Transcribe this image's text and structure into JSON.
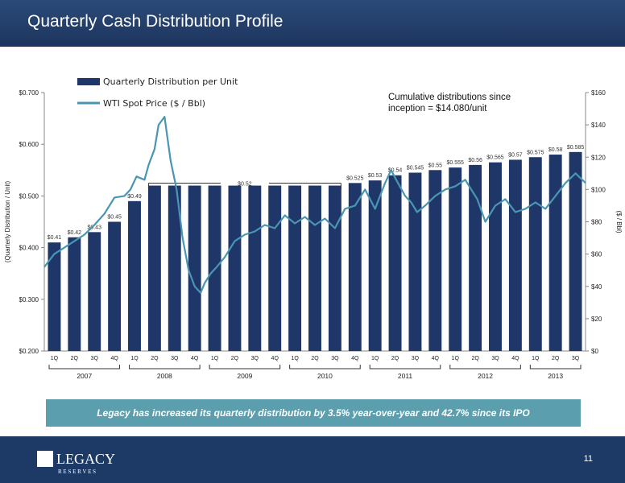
{
  "slide": {
    "title": "Quarterly Cash Distribution Profile",
    "callout": "Legacy has increased its quarterly distribution by 3.5% year-over-year and 42.7% since its IPO",
    "page_number": "11"
  },
  "logo": {
    "line1": "LEGACY",
    "line2": "R E S E R V E S"
  },
  "colors": {
    "bar": "#1f3768",
    "line": "#4a95b2",
    "header": "#1c355e",
    "callout": "#5b9fae"
  },
  "chart_data": {
    "type": "bar",
    "title": "",
    "annotation": "Cumulative distributions since inception = $14.080/unit",
    "ylabel": "(Quarterly Distribution / Unit)",
    "y2label": "($ / Bbl)",
    "ylim": [
      0.2,
      0.7
    ],
    "y2lim": [
      0,
      160
    ],
    "yticks": [
      "$0.200",
      "$0.300",
      "$0.400",
      "$0.500",
      "$0.600",
      "$0.700"
    ],
    "y2ticks": [
      "$0",
      "$20",
      "$40",
      "$60",
      "$80",
      "$100",
      "$120",
      "$140",
      "$160"
    ],
    "legend_position": "top-left",
    "categories": [
      "1Q",
      "2Q",
      "3Q",
      "4Q",
      "1Q",
      "2Q",
      "3Q",
      "4Q",
      "1Q",
      "2Q",
      "3Q",
      "4Q",
      "1Q",
      "2Q",
      "3Q",
      "4Q",
      "1Q",
      "2Q",
      "3Q",
      "4Q",
      "1Q",
      "2Q",
      "3Q",
      "4Q",
      "1Q",
      "2Q",
      "3Q"
    ],
    "year_groups": [
      {
        "label": "2007",
        "count": 4
      },
      {
        "label": "2008",
        "count": 4
      },
      {
        "label": "2009",
        "count": 4
      },
      {
        "label": "2010",
        "count": 4
      },
      {
        "label": "2011",
        "count": 4
      },
      {
        "label": "2012",
        "count": 4
      },
      {
        "label": "2013",
        "count": 3
      }
    ],
    "series": [
      {
        "name": "Quarterly Distribution per Unit",
        "kind": "bar",
        "values": [
          0.41,
          0.42,
          0.43,
          0.45,
          0.49,
          0.52,
          0.52,
          0.52,
          0.52,
          0.52,
          0.52,
          0.52,
          0.52,
          0.52,
          0.52,
          0.525,
          0.53,
          0.54,
          0.545,
          0.55,
          0.555,
          0.56,
          0.565,
          0.57,
          0.575,
          0.58,
          0.585
        ],
        "labels": [
          "$0.41",
          "$0.42",
          "$0.43",
          "$0.45",
          "$0.49",
          "",
          "",
          "",
          "",
          "",
          "",
          "",
          "",
          "",
          "",
          "$0.525",
          "$0.53",
          "$0.54",
          "$0.545",
          "$0.55",
          "$0.555",
          "$0.56",
          "$0.565",
          "$0.57",
          "$0.575",
          "$0.58",
          "$0.585"
        ]
      },
      {
        "name": "WTI Spot Price ($ / Bbl)",
        "kind": "line",
        "axis": "right",
        "x": [
          0,
          0.5,
          1,
          1.5,
          2,
          2.5,
          3,
          3.5,
          4,
          4.3,
          4.6,
          5,
          5.2,
          5.5,
          5.7,
          6,
          6.3,
          6.6,
          6.9,
          7.2,
          7.5,
          7.8,
          8,
          8.3,
          8.6,
          9,
          9.5,
          10,
          10.5,
          11,
          11.5,
          12,
          12.5,
          13,
          13.5,
          14,
          14.5,
          15,
          15.5,
          16,
          16.5,
          17,
          17.3,
          17.6,
          18,
          18.3,
          18.6,
          19,
          19.5,
          20,
          20.5,
          21,
          21.3,
          21.6,
          22,
          22.5,
          23,
          23.5,
          24,
          24.5,
          25,
          25.5,
          26,
          26.5,
          27
        ],
        "y": [
          52,
          60,
          64,
          68,
          72,
          78,
          85,
          95,
          96,
          100,
          108,
          106,
          115,
          125,
          140,
          145,
          118,
          100,
          70,
          50,
          40,
          36,
          42,
          48,
          52,
          58,
          68,
          72,
          74,
          78,
          76,
          84,
          79,
          83,
          78,
          82,
          76,
          88,
          90,
          100,
          88,
          104,
          112,
          105,
          96,
          92,
          86,
          90,
          96,
          100,
          102,
          106,
          100,
          94,
          80,
          90,
          94,
          86,
          88,
          92,
          88,
          96,
          104,
          110,
          104
        ]
      }
    ],
    "bracket_label": "$0.52"
  }
}
